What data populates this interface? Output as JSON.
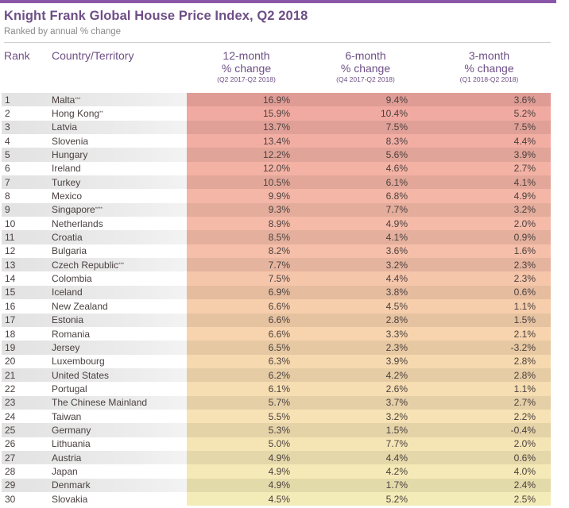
{
  "header": {
    "title": "Knight Frank Global House Price Index, Q2 2018",
    "subtitle": "Ranked by annual % change",
    "accent_color": "#8a56a8",
    "title_color": "#6e4f86"
  },
  "columns": {
    "rank": "Rank",
    "country": "Country/Territory",
    "m12": {
      "line1": "12-month",
      "line2": "% change",
      "period": "(Q2 2017-Q2 2018)"
    },
    "m6": {
      "line1": "6-month",
      "line2": "% change",
      "period": "(Q4 2017-Q2 2018)"
    },
    "m3": {
      "line1": "3-month",
      "line2": "% change",
      "period": "(Q1 2018-Q2 2018)"
    }
  },
  "rows": [
    {
      "rank": "1",
      "country": "Malta***",
      "m12": "16.9%",
      "m6": "9.4%",
      "m3": "3.6%"
    },
    {
      "rank": "2",
      "country": "Hong Kong**",
      "m12": "15.9%",
      "m6": "10.4%",
      "m3": "5.2%"
    },
    {
      "rank": "3",
      "country": "Latvia",
      "m12": "13.7%",
      "m6": "7.5%",
      "m3": "7.5%"
    },
    {
      "rank": "4",
      "country": "Slovenia",
      "m12": "13.4%",
      "m6": "8.3%",
      "m3": "4.4%"
    },
    {
      "rank": "5",
      "country": "Hungary",
      "m12": "12.2%",
      "m6": "5.6%",
      "m3": "3.9%"
    },
    {
      "rank": "6",
      "country": "Ireland",
      "m12": "12.0%",
      "m6": "4.6%",
      "m3": "2.7%"
    },
    {
      "rank": "7",
      "country": "Turkey",
      "m12": "10.5%",
      "m6": "6.1%",
      "m3": "4.1%"
    },
    {
      "rank": "8",
      "country": "Mexico",
      "m12": "9.9%",
      "m6": "6.8%",
      "m3": "4.9%"
    },
    {
      "rank": "9",
      "country": "Singapore****",
      "m12": "9.3%",
      "m6": "7.7%",
      "m3": "3.2%"
    },
    {
      "rank": "10",
      "country": "Netherlands",
      "m12": "8.9%",
      "m6": "4.9%",
      "m3": "2.0%"
    },
    {
      "rank": "11",
      "country": "Croatia",
      "m12": "8.5%",
      "m6": "4.1%",
      "m3": "0.9%"
    },
    {
      "rank": "12",
      "country": "Bulgaria",
      "m12": "8.2%",
      "m6": "3.6%",
      "m3": "1.6%"
    },
    {
      "rank": "13",
      "country": "Czech Republic***",
      "m12": "7.7%",
      "m6": "3.2%",
      "m3": "2.3%"
    },
    {
      "rank": "14",
      "country": "Colombia",
      "m12": "7.5%",
      "m6": "4.4%",
      "m3": "2.3%"
    },
    {
      "rank": "15",
      "country": "Iceland",
      "m12": "6.9%",
      "m6": "3.8%",
      "m3": "0.6%"
    },
    {
      "rank": "16",
      "country": "New Zealand",
      "m12": "6.6%",
      "m6": "4.5%",
      "m3": "1.1%"
    },
    {
      "rank": "17",
      "country": "Estonia",
      "m12": "6.6%",
      "m6": "2.8%",
      "m3": "1.5%"
    },
    {
      "rank": "18",
      "country": "Romania",
      "m12": "6.6%",
      "m6": "3.3%",
      "m3": "2.1%"
    },
    {
      "rank": "19",
      "country": "Jersey",
      "m12": "6.5%",
      "m6": "2.3%",
      "m3": "-3.2%"
    },
    {
      "rank": "20",
      "country": "Luxembourg",
      "m12": "6.3%",
      "m6": "3.9%",
      "m3": "2.8%"
    },
    {
      "rank": "21",
      "country": "United States",
      "m12": "6.2%",
      "m6": "4.2%",
      "m3": "2.8%"
    },
    {
      "rank": "22",
      "country": "Portugal",
      "m12": "6.1%",
      "m6": "2.6%",
      "m3": "1.1%"
    },
    {
      "rank": "23",
      "country": "The Chinese Mainland",
      "m12": "5.7%",
      "m6": "3.7%",
      "m3": "2.7%"
    },
    {
      "rank": "24",
      "country": "Taiwan",
      "m12": "5.5%",
      "m6": "3.2%",
      "m3": "2.2%"
    },
    {
      "rank": "25",
      "country": "Germany",
      "m12": "5.3%",
      "m6": "1.5%",
      "m3": "-0.4%"
    },
    {
      "rank": "26",
      "country": "Lithuania",
      "m12": "5.0%",
      "m6": "7.7%",
      "m3": "2.0%"
    },
    {
      "rank": "27",
      "country": "Austria",
      "m12": "4.9%",
      "m6": "4.4%",
      "m3": "0.6%"
    },
    {
      "rank": "28",
      "country": "Japan",
      "m12": "4.9%",
      "m6": "4.2%",
      "m3": "4.0%"
    },
    {
      "rank": "29",
      "country": "Denmark",
      "m12": "4.9%",
      "m6": "1.7%",
      "m3": "2.4%"
    },
    {
      "rank": "30",
      "country": "Slovakia",
      "m12": "4.5%",
      "m6": "5.2%",
      "m3": "2.5%"
    }
  ],
  "chart_data": {
    "type": "table",
    "title": "Knight Frank Global House Price Index, Q2 2018",
    "subtitle": "Ranked by annual % change",
    "columns": [
      "Rank",
      "Country/Territory",
      "12-month % change (Q2 2017-Q2 2018)",
      "6-month % change (Q4 2017-Q2 2018)",
      "3-month % change (Q1 2018-Q2 2018)"
    ],
    "categories": [
      "Malta***",
      "Hong Kong**",
      "Latvia",
      "Slovenia",
      "Hungary",
      "Ireland",
      "Turkey",
      "Mexico",
      "Singapore****",
      "Netherlands",
      "Croatia",
      "Bulgaria",
      "Czech Republic***",
      "Colombia",
      "Iceland",
      "New Zealand",
      "Estonia",
      "Romania",
      "Jersey",
      "Luxembourg",
      "United States",
      "Portugal",
      "The Chinese Mainland",
      "Taiwan",
      "Germany",
      "Lithuania",
      "Austria",
      "Japan",
      "Denmark",
      "Slovakia"
    ],
    "series": [
      {
        "name": "12-month % change",
        "values": [
          16.9,
          15.9,
          13.7,
          13.4,
          12.2,
          12.0,
          10.5,
          9.9,
          9.3,
          8.9,
          8.5,
          8.2,
          7.7,
          7.5,
          6.9,
          6.6,
          6.6,
          6.6,
          6.5,
          6.3,
          6.2,
          6.1,
          5.7,
          5.5,
          5.3,
          5.0,
          4.9,
          4.9,
          4.9,
          4.5
        ]
      },
      {
        "name": "6-month % change",
        "values": [
          9.4,
          10.4,
          7.5,
          8.3,
          5.6,
          4.6,
          6.1,
          6.8,
          7.7,
          4.9,
          4.1,
          3.6,
          3.2,
          4.4,
          3.8,
          4.5,
          2.8,
          3.3,
          2.3,
          3.9,
          4.2,
          2.6,
          3.7,
          3.2,
          1.5,
          7.7,
          4.4,
          4.2,
          1.7,
          5.2
        ]
      },
      {
        "name": "3-month % change",
        "values": [
          3.6,
          5.2,
          7.5,
          4.4,
          3.9,
          2.7,
          4.1,
          4.9,
          3.2,
          2.0,
          0.9,
          1.6,
          2.3,
          2.3,
          0.6,
          1.1,
          1.5,
          2.1,
          -3.2,
          2.8,
          2.8,
          1.1,
          2.7,
          2.2,
          -0.4,
          2.0,
          0.6,
          4.0,
          2.4,
          2.5
        ]
      }
    ],
    "color_scale": {
      "high": "#f2a9a3",
      "mid": "#f7d2a8",
      "low": "#f4eab8"
    }
  }
}
